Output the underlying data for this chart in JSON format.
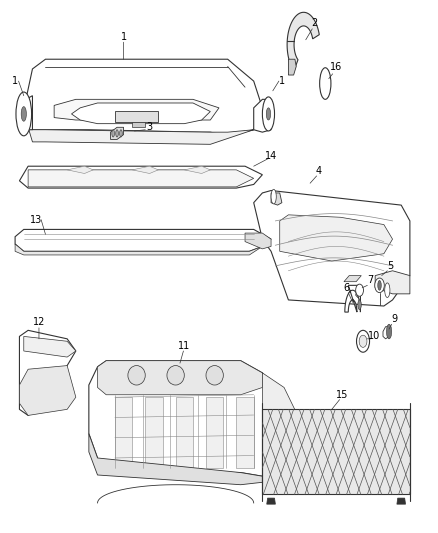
{
  "background_color": "#ffffff",
  "line_color": "#333333",
  "light_line": "#888888",
  "fig_width": 4.38,
  "fig_height": 5.33,
  "dpi": 100
}
